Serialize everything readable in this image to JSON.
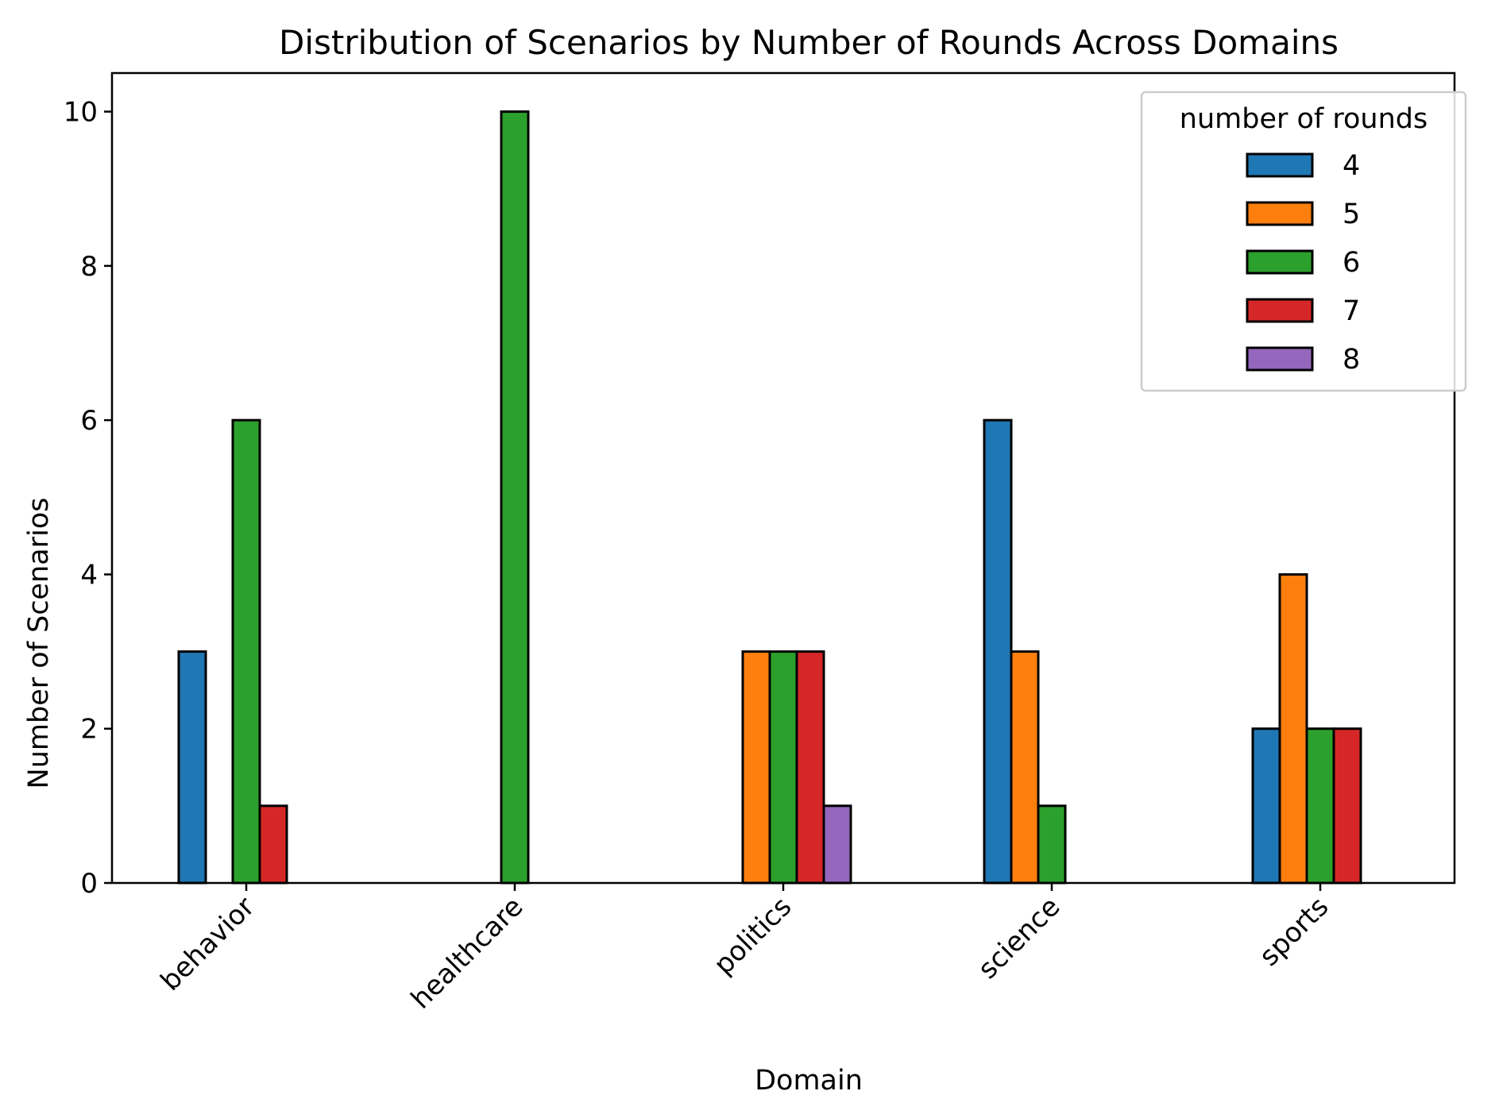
{
  "chart_data": {
    "type": "bar",
    "title": "Distribution of Scenarios by Number of Rounds Across Domains",
    "xlabel": "Domain",
    "ylabel": "Number of Scenarios",
    "categories": [
      "behavior",
      "healthcare",
      "politics",
      "science",
      "sports"
    ],
    "series": [
      {
        "name": "4",
        "color": "#1f77b4",
        "values": [
          3,
          0,
          0,
          6,
          2
        ]
      },
      {
        "name": "5",
        "color": "#ff7f0e",
        "values": [
          0,
          0,
          3,
          3,
          4
        ]
      },
      {
        "name": "6",
        "color": "#2ca02c",
        "values": [
          6,
          10,
          3,
          1,
          2
        ]
      },
      {
        "name": "7",
        "color": "#d62728",
        "values": [
          1,
          0,
          3,
          0,
          2
        ]
      },
      {
        "name": "8",
        "color": "#9467bd",
        "values": [
          0,
          0,
          1,
          0,
          0
        ]
      }
    ],
    "ylim": [
      0,
      10.5
    ],
    "yticks": [
      "0",
      "2",
      "4",
      "6",
      "8",
      "10"
    ],
    "legend": {
      "title": "number of rounds",
      "placement": "top-right"
    },
    "grid": false,
    "tick_rotation": "45 degrees"
  }
}
